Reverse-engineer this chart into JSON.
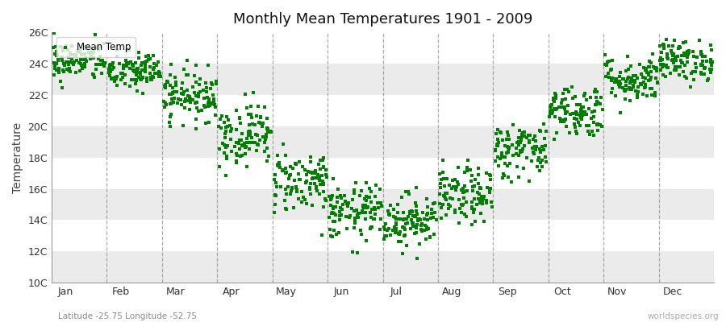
{
  "title": "Monthly Mean Temperatures 1901 - 2009",
  "ylabel": "Temperature",
  "xlabel": "",
  "legend_label": "Mean Temp",
  "marker_color": "#008000",
  "background_color": "#ffffff",
  "plot_bg_color": "#ffffff",
  "band_color": "#ebebeb",
  "dashed_line_color": "#888888",
  "ylim": [
    10,
    26
  ],
  "ytick_labels": [
    "10C",
    "12C",
    "14C",
    "16C",
    "18C",
    "20C",
    "22C",
    "24C",
    "26C"
  ],
  "ytick_values": [
    10,
    12,
    14,
    16,
    18,
    20,
    22,
    24,
    26
  ],
  "months": [
    "Jan",
    "Feb",
    "Mar",
    "Apr",
    "May",
    "Jun",
    "Jul",
    "Aug",
    "Sep",
    "Oct",
    "Nov",
    "Dec"
  ],
  "month_boundaries": [
    1.5,
    2.5,
    3.5,
    4.5,
    5.5,
    6.5,
    7.5,
    8.5,
    9.5,
    10.5,
    11.5
  ],
  "subtitle": "Latitude -25.75 Longitude -52.75",
  "watermark": "worldspecies.org",
  "years": 109,
  "monthly_means": [
    24.2,
    23.5,
    22.0,
    19.5,
    16.5,
    14.5,
    14.0,
    15.5,
    18.5,
    21.0,
    23.0,
    24.2
  ],
  "monthly_stds": [
    0.65,
    0.65,
    0.8,
    1.0,
    1.0,
    0.9,
    0.85,
    0.9,
    0.9,
    0.85,
    0.75,
    0.65
  ]
}
